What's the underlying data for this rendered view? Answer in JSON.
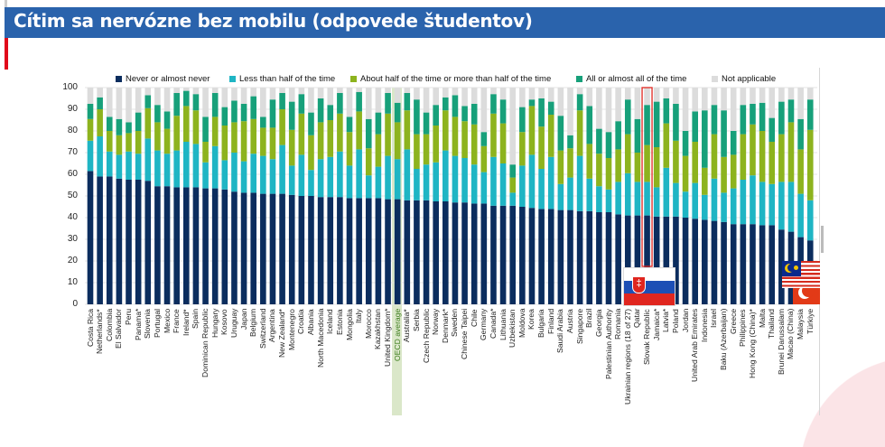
{
  "header": {
    "title": "Cítim sa nervózne bez mobilu (odpovede študentov)"
  },
  "chart_data": {
    "type": "bar",
    "stacked": true,
    "title": "",
    "xlabel": "",
    "ylabel": "",
    "ylim": [
      0,
      100
    ],
    "yticks": [
      0,
      10,
      20,
      30,
      40,
      50,
      60,
      70,
      80,
      90,
      100
    ],
    "grid": true,
    "legend_position": "top",
    "highlighted_categories": [
      "OECD average",
      "Slovak Republic"
    ],
    "flags_shown": [
      "Slovak Republic",
      "Malaysia",
      "Türkiye"
    ],
    "categories": [
      "Costa Rica",
      "Netherlands*",
      "Colombia",
      "El Salvador",
      "Peru",
      "Panama*",
      "Slovenia",
      "Portugal",
      "Mexico",
      "France",
      "Ireland*",
      "Spain",
      "Dominican Republic",
      "Hungary",
      "Kosovo",
      "Uruguay",
      "Japan",
      "Belgium",
      "Switzerland",
      "Argentina",
      "New Zealand*",
      "Montenegro",
      "Croatia",
      "Albania",
      "North Macedonia",
      "Iceland",
      "Estonia",
      "Mongolia",
      "Italy",
      "Morocco",
      "Kazakhstan",
      "United Kingdom*",
      "OECD average",
      "Australia*",
      "Serbia",
      "Czech Republic",
      "Norway",
      "Denmark*",
      "Sweden",
      "Chinese Taipei",
      "Chile",
      "Germany",
      "Canada*",
      "Lithuania",
      "Uzbekistan",
      "Moldova",
      "Korea",
      "Bulgaria",
      "Finland",
      "Saudi Arabia",
      "Austria",
      "Singapore",
      "Brazil",
      "Georgia",
      "Palestinian Authority",
      "Romania",
      "Ukrainian regions (18 of 27)",
      "Qatar",
      "Slovak Republic",
      "Jamaica*",
      "Latvia*",
      "Poland",
      "Jordan",
      "United Arab Emirates",
      "Indonesia",
      "Israel",
      "Baku (Azerbaijan)",
      "Greece",
      "Philippines",
      "Hong Kong (China)*",
      "Malta",
      "Thailand",
      "Brunei Darussalam",
      "Macao (China)",
      "Malaysia",
      "Türkiye"
    ],
    "series": [
      {
        "name": "Never or almost never",
        "color": "#0b2d5e",
        "values": [
          61.5,
          59,
          59,
          58,
          57.5,
          57.5,
          57,
          54.5,
          54.5,
          54,
          54,
          54,
          53.5,
          53.5,
          53,
          52,
          51.5,
          51.5,
          51,
          51,
          51,
          50.5,
          50,
          50,
          49.5,
          49.5,
          49.5,
          49,
          49,
          49,
          49,
          48.5,
          48.5,
          48,
          48,
          48,
          47.5,
          47.5,
          47,
          47,
          46.5,
          46.5,
          45.5,
          45.5,
          45.5,
          45,
          44.5,
          44,
          44,
          43.5,
          43.5,
          43,
          43,
          42.5,
          42.5,
          41.5,
          41,
          41,
          41,
          40.5,
          40.5,
          40.5,
          40,
          39.5,
          39,
          38.5,
          38,
          37,
          37,
          37,
          36.5,
          36.5,
          34.5,
          33.5,
          31,
          29.5
        ]
      },
      {
        "name": "Less than half of the time",
        "color": "#1fb5c4",
        "values": [
          14,
          18.5,
          11.5,
          11,
          13,
          12,
          19.5,
          16.5,
          15,
          17,
          21,
          20,
          12,
          19.5,
          13.5,
          18,
          14.5,
          18,
          17.5,
          16,
          22.5,
          13.5,
          19,
          12,
          17.5,
          18.5,
          21,
          15,
          22.5,
          10.5,
          14.5,
          20,
          18.5,
          23.5,
          14.5,
          16.5,
          18,
          23.5,
          21.5,
          20.5,
          18,
          14.5,
          22.5,
          19.5,
          6,
          19,
          24.5,
          18.5,
          24,
          12,
          15,
          25.5,
          15,
          12,
          10.5,
          15,
          19.5,
          15.5,
          15.5,
          13.5,
          22.5,
          15.5,
          12,
          16.5,
          11.5,
          19.5,
          13.5,
          16.5,
          20.5,
          22.5,
          20,
          19,
          22,
          23,
          20,
          18.5
        ]
      },
      {
        "name": "About half of the time or more than half of the time",
        "color": "#8db31e",
        "values": [
          10,
          12.5,
          9.5,
          9,
          8.5,
          10.5,
          14,
          13,
          11.5,
          16,
          16.5,
          15.5,
          9.5,
          13.5,
          16,
          14,
          18.5,
          16,
          13,
          14.5,
          16.5,
          16.5,
          19,
          16,
          17,
          17,
          17.5,
          15.5,
          17.5,
          12.5,
          15,
          19.5,
          17,
          18,
          16,
          14,
          17,
          18.5,
          18,
          17,
          18.5,
          12,
          20,
          18.5,
          7,
          15.5,
          22.5,
          19.5,
          19.5,
          15.5,
          13.5,
          21,
          16,
          15,
          14.5,
          15,
          18,
          13.5,
          17,
          18.5,
          20.5,
          19.5,
          16.5,
          19,
          12.5,
          20.5,
          16.5,
          15.5,
          21,
          23.5,
          23.5,
          19.5,
          22,
          27.5,
          20.5,
          32.5
        ]
      },
      {
        "name": "All or almost all of the time",
        "color": "#17a07a",
        "values": [
          7,
          5.5,
          6.5,
          7.5,
          5,
          8.5,
          6,
          8,
          8,
          10.5,
          7,
          7.5,
          11.5,
          11,
          8.5,
          10,
          8,
          10.5,
          5,
          13,
          7.5,
          13,
          9,
          10.5,
          11,
          7,
          9.5,
          7,
          9,
          13.5,
          10,
          9.5,
          9,
          8,
          16,
          10,
          9.5,
          6,
          10,
          7,
          9.5,
          6.5,
          9,
          11,
          6,
          11.5,
          3,
          13,
          6,
          16,
          6,
          7.5,
          17.5,
          11.5,
          12,
          13,
          16,
          15.5,
          18.5,
          21,
          11.5,
          17,
          11.5,
          14,
          26.5,
          13.5,
          21.5,
          11,
          13.5,
          9.5,
          13,
          11,
          15,
          10.5,
          14,
          14
        ]
      },
      {
        "name": "Not applicable",
        "color": "#dcdcdc",
        "values": [
          7.5,
          4.5,
          13.5,
          14.5,
          16,
          11.5,
          3.5,
          8,
          11,
          2.5,
          1.5,
          3,
          13.5,
          2.5,
          9,
          6,
          7.5,
          4,
          13.5,
          5.5,
          2.5,
          6.5,
          3,
          11.5,
          5,
          8,
          2.5,
          13.5,
          2,
          14.5,
          11.5,
          2.5,
          7,
          2.5,
          5.5,
          11.5,
          8,
          4.5,
          3.5,
          8.5,
          7.5,
          20.5,
          3,
          5.5,
          35.5,
          9,
          5.5,
          5,
          6.5,
          13,
          22,
          3,
          8.5,
          19,
          20.5,
          15.5,
          5.5,
          14.5,
          8,
          6.5,
          5,
          7.5,
          20,
          11,
          10.5,
          8,
          10.5,
          20,
          8,
          7.5,
          7,
          14,
          6.5,
          5.5,
          14.5,
          5.5
        ]
      }
    ]
  }
}
